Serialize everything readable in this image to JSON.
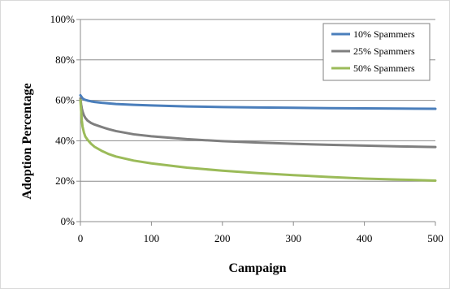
{
  "chart_data": {
    "type": "line",
    "title": "",
    "xlabel": "Campaign",
    "ylabel": "Adoption Percentage",
    "xlim": [
      0,
      500
    ],
    "ylim": [
      0,
      100
    ],
    "x_ticks": [
      "0",
      "100",
      "200",
      "300",
      "400",
      "500"
    ],
    "y_ticks": [
      "0%",
      "20%",
      "40%",
      "60%",
      "80%",
      "100%"
    ],
    "grid": "horizontal",
    "legend_position": "top-right",
    "series": [
      {
        "name": "10% Spammers",
        "color": "#4a7ebb",
        "x": [
          0,
          1,
          2,
          3,
          5,
          7,
          10,
          15,
          20,
          30,
          40,
          50,
          75,
          100,
          150,
          200,
          250,
          300,
          350,
          400,
          450,
          500
        ],
        "y": [
          62.5,
          62,
          61.5,
          61,
          60.5,
          60.2,
          59.9,
          59.5,
          59.2,
          58.8,
          58.5,
          58.2,
          57.8,
          57.5,
          57,
          56.7,
          56.5,
          56.3,
          56.1,
          56,
          55.9,
          55.8
        ]
      },
      {
        "name": "25% Spammers",
        "color": "#7f7f7f",
        "x": [
          0,
          1,
          2,
          3,
          5,
          7,
          10,
          15,
          20,
          30,
          40,
          50,
          75,
          100,
          150,
          200,
          250,
          300,
          350,
          400,
          450,
          500
        ],
        "y": [
          61,
          58,
          56,
          54.5,
          52.5,
          51.3,
          50,
          48.8,
          48,
          46.8,
          45.7,
          44.8,
          43.2,
          42.2,
          40.8,
          39.8,
          39.1,
          38.5,
          38,
          37.6,
          37.2,
          36.9
        ]
      },
      {
        "name": "50% Spammers",
        "color": "#9bbb59",
        "x": [
          0,
          1,
          2,
          3,
          5,
          7,
          10,
          15,
          20,
          30,
          40,
          50,
          75,
          100,
          150,
          200,
          250,
          300,
          350,
          400,
          450,
          500
        ],
        "y": [
          60,
          55,
          50,
          47,
          44,
          42,
          40.5,
          38.5,
          37,
          35,
          33.4,
          32.2,
          30.2,
          28.8,
          26.7,
          25.2,
          24,
          23,
          22.1,
          21.3,
          20.8,
          20.3
        ]
      }
    ]
  }
}
